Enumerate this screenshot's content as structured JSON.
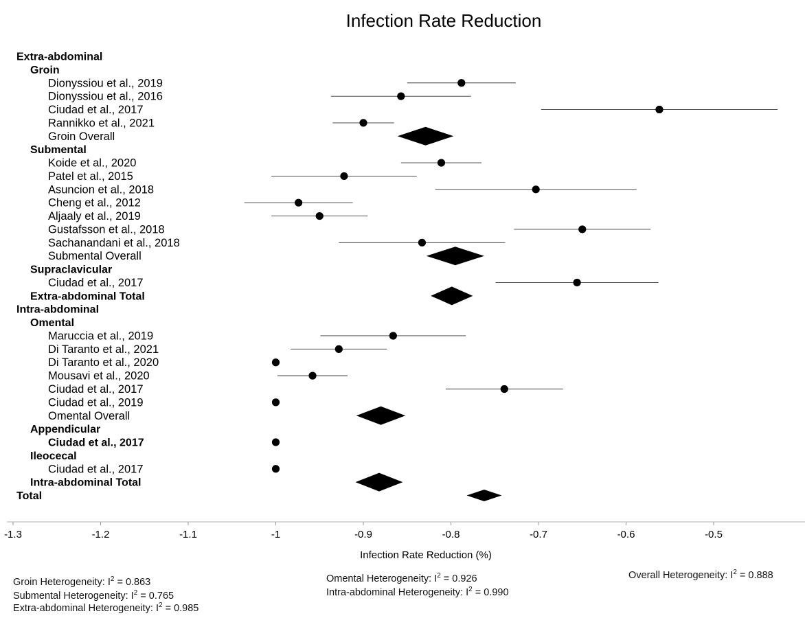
{
  "chart_data": {
    "type": "forest",
    "title": "Infection Rate Reduction",
    "xlabel": "Infection Rate Reduction (%)",
    "xlim": [
      -1.3,
      -0.42
    ],
    "xticks": [
      -1.3,
      -1.2,
      -1.1,
      -1,
      -0.9,
      -0.8,
      -0.7,
      -0.6,
      -0.5
    ],
    "xtick_labels": [
      "-1.3",
      "-1.2",
      "-1.1",
      "-1",
      "-0.9",
      "-0.8",
      "-0.7",
      "-0.6",
      "-0.5"
    ],
    "rows": [
      {
        "label": "Extra-abdominal",
        "kind": "header",
        "level": 0
      },
      {
        "label": "Groin",
        "kind": "header",
        "level": 1
      },
      {
        "label": "Dionyssiou et al., 2019",
        "kind": "study",
        "level": 2,
        "est": -0.788,
        "lo": -0.85,
        "hi": -0.726
      },
      {
        "label": "Dionyssiou et al., 2016",
        "kind": "study",
        "level": 2,
        "est": -0.857,
        "lo": -0.937,
        "hi": -0.777
      },
      {
        "label": "Ciudad et al., 2017",
        "kind": "study",
        "level": 2,
        "est": -0.562,
        "lo": -0.697,
        "hi": -0.427
      },
      {
        "label": "Rannikko et al., 2021",
        "kind": "study",
        "level": 2,
        "est": -0.9,
        "lo": -0.935,
        "hi": -0.865
      },
      {
        "label": "Groin Overall",
        "kind": "pooled",
        "level": 2,
        "est": -0.829,
        "lo": -0.861,
        "hi": -0.797
      },
      {
        "label": "Submental",
        "kind": "header",
        "level": 1
      },
      {
        "label": "Koide et al., 2020",
        "kind": "study",
        "level": 2,
        "est": -0.811,
        "lo": -0.857,
        "hi": -0.765
      },
      {
        "label": "Patel et al., 2015",
        "kind": "study",
        "level": 2,
        "est": -0.922,
        "lo": -1.005,
        "hi": -0.839
      },
      {
        "label": "Asuncion et al., 2018",
        "kind": "study",
        "level": 2,
        "est": -0.703,
        "lo": -0.818,
        "hi": -0.588
      },
      {
        "label": "Cheng et al., 2012",
        "kind": "study",
        "level": 2,
        "est": -0.974,
        "lo": -1.036,
        "hi": -0.912
      },
      {
        "label": "Aljaaly et al., 2019",
        "kind": "study",
        "level": 2,
        "est": -0.95,
        "lo": -1.005,
        "hi": -0.895
      },
      {
        "label": "Gustafsson et al., 2018",
        "kind": "study",
        "level": 2,
        "est": -0.65,
        "lo": -0.728,
        "hi": -0.572
      },
      {
        "label": "Sachanandani et al., 2018",
        "kind": "study",
        "level": 2,
        "est": -0.833,
        "lo": -0.928,
        "hi": -0.738
      },
      {
        "label": "Submental Overall",
        "kind": "pooled",
        "level": 2,
        "est": -0.795,
        "lo": -0.828,
        "hi": -0.762
      },
      {
        "label": "Supraclavicular",
        "kind": "header",
        "level": 1
      },
      {
        "label": "Ciudad et al., 2017",
        "kind": "study",
        "level": 2,
        "est": -0.656,
        "lo": -0.749,
        "hi": -0.563
      },
      {
        "label": "Extra-abdominal Total",
        "kind": "pooled",
        "level": 1,
        "bold": true,
        "est": -0.799,
        "lo": -0.823,
        "hi": -0.775
      },
      {
        "label": "Intra-abdominal",
        "kind": "header",
        "level": 0
      },
      {
        "label": "Omental",
        "kind": "header",
        "level": 1
      },
      {
        "label": "Maruccia et al., 2019",
        "kind": "study",
        "level": 2,
        "est": -0.866,
        "lo": -0.949,
        "hi": -0.783
      },
      {
        "label": "Di Taranto et al., 2021",
        "kind": "study",
        "level": 2,
        "est": -0.928,
        "lo": -0.983,
        "hi": -0.873
      },
      {
        "label": "Di Taranto et al., 2020",
        "kind": "study",
        "level": 2,
        "est": -1.0,
        "lo": -1.0,
        "hi": -1.0
      },
      {
        "label": "Mousavi et al., 2020",
        "kind": "study",
        "level": 2,
        "est": -0.958,
        "lo": -0.998,
        "hi": -0.918
      },
      {
        "label": "Ciudad et al., 2017",
        "kind": "study",
        "level": 2,
        "est": -0.739,
        "lo": -0.806,
        "hi": -0.672
      },
      {
        "label": "Ciudad et al., 2019",
        "kind": "study",
        "level": 2,
        "est": -1.0,
        "lo": -1.0,
        "hi": -1.0
      },
      {
        "label": "Omental Overall",
        "kind": "pooled",
        "level": 2,
        "est": -0.88,
        "lo": -0.908,
        "hi": -0.852
      },
      {
        "label": "Appendicular",
        "kind": "header",
        "level": 1
      },
      {
        "label": "Ciudad et al., 2017",
        "kind": "study",
        "level": 2,
        "bold": true,
        "est": -1.0,
        "lo": -1.0,
        "hi": -1.0
      },
      {
        "label": "Ileocecal",
        "kind": "header",
        "level": 1
      },
      {
        "label": "Ciudad et al., 2017",
        "kind": "study",
        "level": 2,
        "est": -1.0,
        "lo": -1.0,
        "hi": -1.0
      },
      {
        "label": "Intra-abdominal Total",
        "kind": "pooled",
        "level": 1,
        "bold": true,
        "est": -0.882,
        "lo": -0.909,
        "hi": -0.855
      },
      {
        "label": "Total",
        "kind": "pooled",
        "level": 0,
        "bold": true,
        "est": -0.762,
        "lo": -0.782,
        "hi": -0.742
      }
    ],
    "heterogeneity": [
      {
        "group": "Groin",
        "prefix": "Groin Heterogeneity: I",
        "value": " = 0.863"
      },
      {
        "group": "Submental",
        "prefix": "Submental Heterogeneity: I",
        "value": " = 0.765"
      },
      {
        "group": "Extra-abdominal",
        "prefix": "Extra-abdominal Heterogeneity: I",
        "value": " = 0.985"
      },
      {
        "group": "Omental",
        "prefix": "Omental Heterogeneity: I",
        "value": " = 0.926"
      },
      {
        "group": "Intra-abdominal",
        "prefix": "Intra-abdominal Heterogeneity: I",
        "value": " = 0.990"
      },
      {
        "group": "Overall",
        "prefix": "Overall Heterogeneity: I",
        "value": " = 0.888"
      }
    ],
    "i2_superscript": "2"
  }
}
